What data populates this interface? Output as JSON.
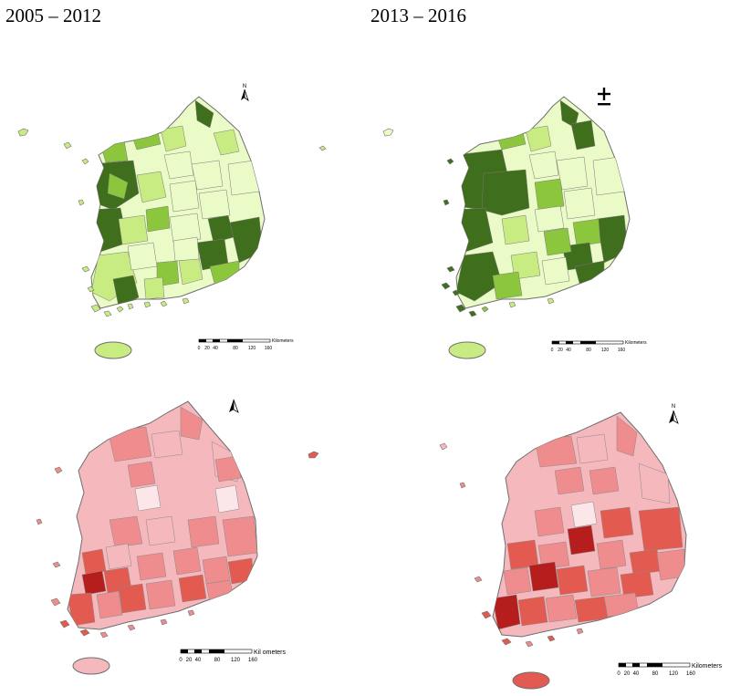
{
  "titles": {
    "left": "2005 – 2012",
    "right": "2013 – 2016"
  },
  "north_arrow_label": "N",
  "scale_bar": {
    "unit": "Kilometers",
    "unit_bottom_row": "Kil ometers",
    "ticks": [
      "0",
      "20",
      "40",
      "80",
      "120",
      "160"
    ]
  },
  "colors": {
    "green_scale": [
      "#eafbc8",
      "#c8ec82",
      "#8cc63c",
      "#3f6e1c"
    ],
    "red_scale": [
      "#fbe7ea",
      "#f5b8bd",
      "#ee8c8e",
      "#e35a50",
      "#b61d1d"
    ],
    "boundary": "#6f6f6f"
  },
  "icons": {
    "north_arrow": "north-arrow-icon",
    "plus_minus_north": "plus-minus-north-symbol"
  }
}
